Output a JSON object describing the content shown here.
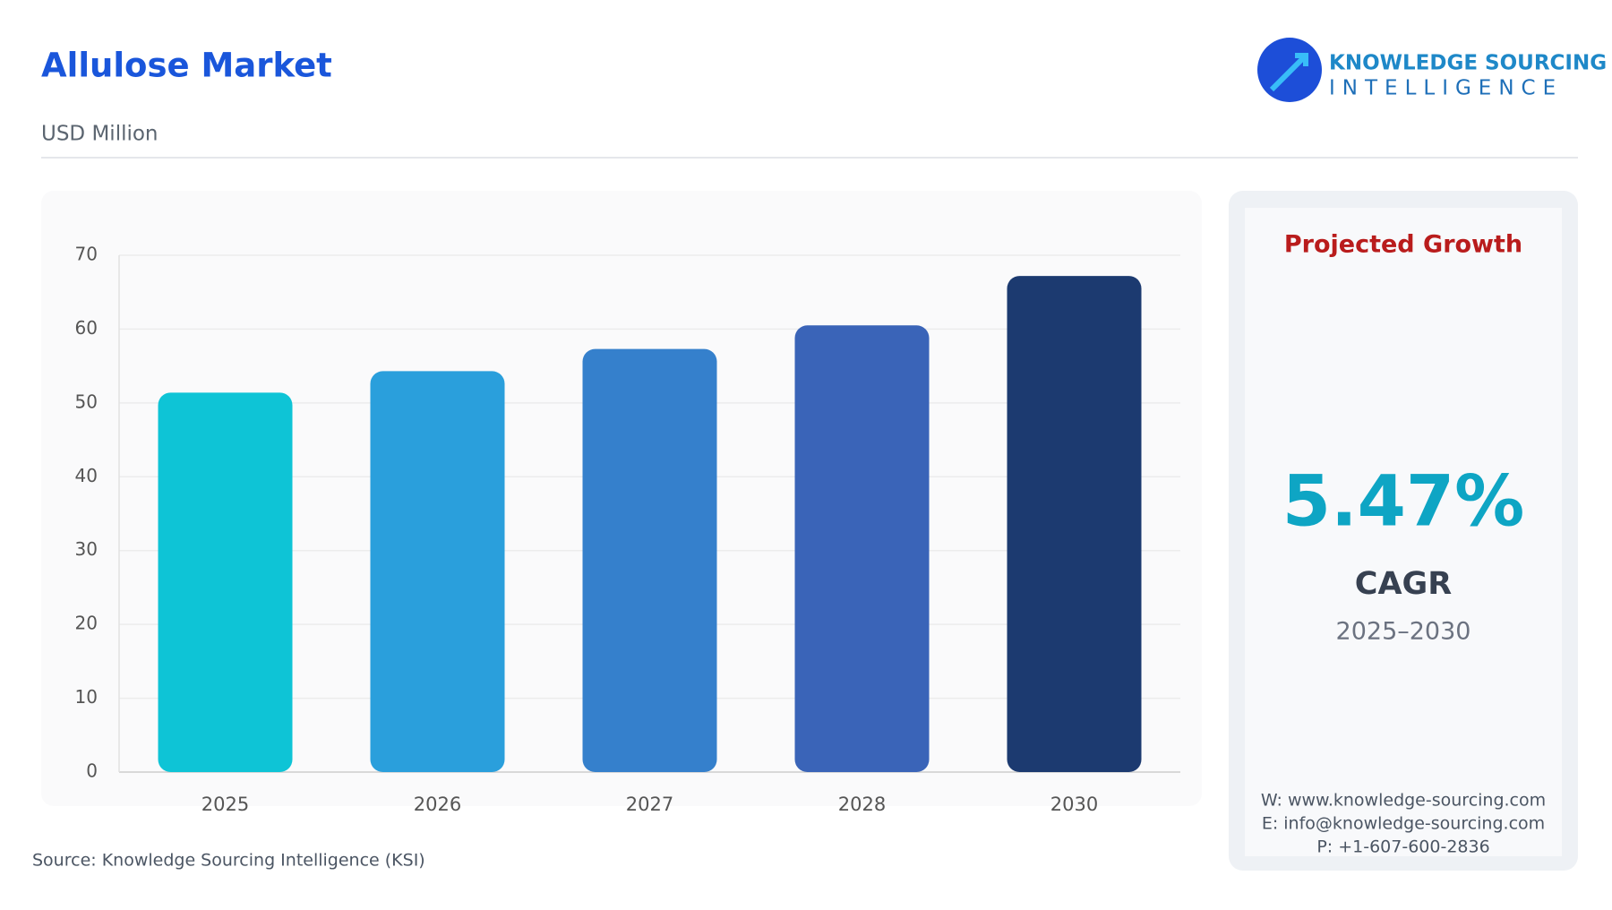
{
  "chart_data": {
    "type": "bar",
    "title": "Allulose Market",
    "subtitle": "USD Million",
    "categories": [
      "2025",
      "2026",
      "2027",
      "2028",
      "2030"
    ],
    "values": [
      51.4,
      54.3,
      57.3,
      60.5,
      67.2
    ],
    "colors": [
      "#0ec4d6",
      "#2a9fdc",
      "#3580cc",
      "#3a64b8",
      "#1c3a70"
    ],
    "ylim": [
      0,
      70
    ],
    "yticks": [
      0,
      10,
      20,
      30,
      40,
      50,
      60,
      70
    ],
    "grid": true
  },
  "logo": {
    "line1": "KNOWLEDGE SOURCING",
    "line2": "INTELLIGENCE"
  },
  "source": "Source: Knowledge Sourcing Intelligence (KSI)",
  "panel": {
    "heading": "Projected Growth",
    "rate": "5.47%",
    "label": "CAGR",
    "period": "2025–2030",
    "contacts": [
      "W: www.knowledge-sourcing.com",
      "E: info@knowledge-sourcing.com",
      "P: +1-607-600-2836"
    ]
  }
}
